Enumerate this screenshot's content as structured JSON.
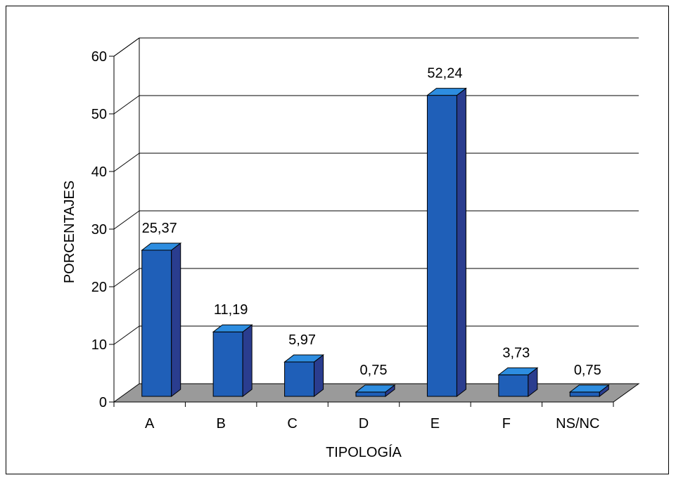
{
  "chart_data": {
    "type": "bar",
    "categories": [
      "A",
      "B",
      "C",
      "D",
      "E",
      "F",
      "NS/NC"
    ],
    "values": [
      25.37,
      11.19,
      5.97,
      0.75,
      52.24,
      3.73,
      0.75
    ],
    "value_labels": [
      "25,37",
      "11,19",
      "5,97",
      "0,75",
      "52,24",
      "3,73",
      "0,75"
    ],
    "xlabel": "TIPOLOGÍA",
    "ylabel": "PORCENTAJES",
    "ylim": [
      0,
      60
    ],
    "yticks": [
      0,
      10,
      20,
      30,
      40,
      50,
      60
    ],
    "grid": true,
    "style": "3d",
    "colors": {
      "bar_front": "#1f5fb8",
      "bar_top": "#2d8de0",
      "bar_side": "#2a3d8f",
      "floor": "#9a9a9a"
    }
  }
}
